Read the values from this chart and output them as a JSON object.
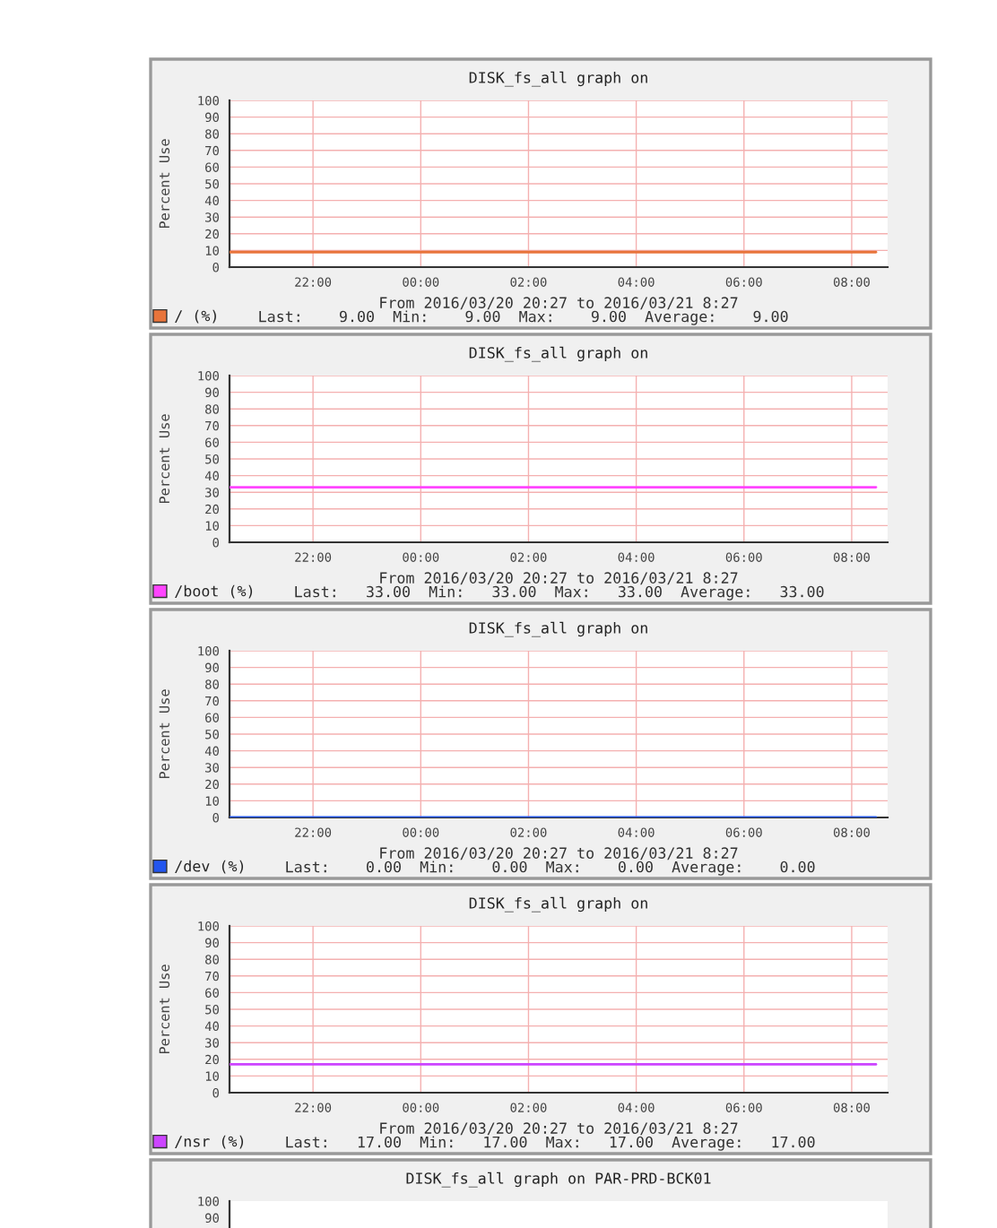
{
  "chart_data": [
    {
      "type": "line",
      "title": "DISK_fs_all graph on",
      "ylabel": "Percent Use",
      "xlabel": "From 2016/03/20 20:27 to 2016/03/21 8:27",
      "x": [
        "2016-03-20T20:27",
        "2016-03-21T08:27"
      ],
      "series": [
        {
          "name": "/ (%)",
          "color": "#e8743b",
          "values": [
            9,
            9
          ]
        }
      ],
      "annotations": [
        "Last:    9.00  Min:    9.00  Max:    9.00  Average:    9.00"
      ],
      "xlim": [
        "2016-03-20T20:27",
        "2016-03-21T08:40"
      ],
      "ylim": [
        0,
        100
      ],
      "xticks": [
        {
          "value": "2016-03-20T22:00",
          "label": "22:00"
        },
        {
          "value": "2016-03-21T00:00",
          "label": "00:00"
        },
        {
          "value": "2016-03-21T02:00",
          "label": "02:00"
        },
        {
          "value": "2016-03-21T04:00",
          "label": "04:00"
        },
        {
          "value": "2016-03-21T06:00",
          "label": "06:00"
        },
        {
          "value": "2016-03-21T08:00",
          "label": "08:00"
        }
      ],
      "yticks": [
        0,
        10,
        20,
        30,
        40,
        50,
        60,
        70,
        80,
        90,
        100
      ],
      "grid": true,
      "legend": "bottom left"
    },
    {
      "type": "line",
      "title": "DISK_fs_all graph on",
      "ylabel": "Percent Use",
      "xlabel": "From 2016/03/20 20:27 to 2016/03/21 8:27",
      "x": [
        "2016-03-20T20:27",
        "2016-03-21T08:27"
      ],
      "series": [
        {
          "name": "/boot (%)",
          "color": "#ff44ff",
          "values": [
            33,
            33
          ]
        }
      ],
      "annotations": [
        "Last:   33.00  Min:   33.00  Max:   33.00  Average:   33.00"
      ],
      "xlim": [
        "2016-03-20T20:27",
        "2016-03-21T08:40"
      ],
      "ylim": [
        0,
        100
      ],
      "xticks": [
        {
          "value": "2016-03-20T22:00",
          "label": "22:00"
        },
        {
          "value": "2016-03-21T00:00",
          "label": "00:00"
        },
        {
          "value": "2016-03-21T02:00",
          "label": "02:00"
        },
        {
          "value": "2016-03-21T04:00",
          "label": "04:00"
        },
        {
          "value": "2016-03-21T06:00",
          "label": "06:00"
        },
        {
          "value": "2016-03-21T08:00",
          "label": "08:00"
        }
      ],
      "yticks": [
        0,
        10,
        20,
        30,
        40,
        50,
        60,
        70,
        80,
        90,
        100
      ],
      "grid": true,
      "legend": "bottom left"
    },
    {
      "type": "line",
      "title": "DISK_fs_all graph on",
      "ylabel": "Percent Use",
      "xlabel": "From 2016/03/20 20:27 to 2016/03/21 8:27",
      "x": [
        "2016-03-20T20:27",
        "2016-03-21T08:27"
      ],
      "series": [
        {
          "name": "/dev (%)",
          "color": "#2255ee",
          "values": [
            0,
            0
          ]
        }
      ],
      "annotations": [
        "Last:    0.00  Min:    0.00  Max:    0.00  Average:    0.00"
      ],
      "xlim": [
        "2016-03-20T20:27",
        "2016-03-21T08:40"
      ],
      "ylim": [
        0,
        100
      ],
      "xticks": [
        {
          "value": "2016-03-20T22:00",
          "label": "22:00"
        },
        {
          "value": "2016-03-21T00:00",
          "label": "00:00"
        },
        {
          "value": "2016-03-21T02:00",
          "label": "02:00"
        },
        {
          "value": "2016-03-21T04:00",
          "label": "04:00"
        },
        {
          "value": "2016-03-21T06:00",
          "label": "06:00"
        },
        {
          "value": "2016-03-21T08:00",
          "label": "08:00"
        }
      ],
      "yticks": [
        0,
        10,
        20,
        30,
        40,
        50,
        60,
        70,
        80,
        90,
        100
      ],
      "grid": true,
      "legend": "bottom left"
    },
    {
      "type": "line",
      "title": "DISK_fs_all graph on",
      "ylabel": "Percent Use",
      "xlabel": "From 2016/03/20 20:27 to 2016/03/21 8:27",
      "x": [
        "2016-03-20T20:27",
        "2016-03-21T08:27"
      ],
      "series": [
        {
          "name": "/nsr (%)",
          "color": "#cc44ff",
          "values": [
            17,
            17
          ]
        }
      ],
      "annotations": [
        "Last:   17.00  Min:   17.00  Max:   17.00  Average:   17.00"
      ],
      "xlim": [
        "2016-03-20T20:27",
        "2016-03-21T08:40"
      ],
      "ylim": [
        0,
        100
      ],
      "xticks": [
        {
          "value": "2016-03-20T22:00",
          "label": "22:00"
        },
        {
          "value": "2016-03-21T00:00",
          "label": "00:00"
        },
        {
          "value": "2016-03-21T02:00",
          "label": "02:00"
        },
        {
          "value": "2016-03-21T04:00",
          "label": "04:00"
        },
        {
          "value": "2016-03-21T06:00",
          "label": "06:00"
        },
        {
          "value": "2016-03-21T08:00",
          "label": "08:00"
        }
      ],
      "yticks": [
        0,
        10,
        20,
        30,
        40,
        50,
        60,
        70,
        80,
        90,
        100
      ],
      "grid": true,
      "legend": "bottom left"
    },
    {
      "type": "line",
      "title": "DISK_fs_all graph on PAR-PRD-BCK01",
      "xlim": [
        "2016-03-20T20:27",
        "2016-03-21T08:40"
      ],
      "ylim": [
        0,
        100
      ],
      "yticks": [
        90,
        100
      ],
      "grid": "x",
      "tick_labels": "y"
    }
  ]
}
